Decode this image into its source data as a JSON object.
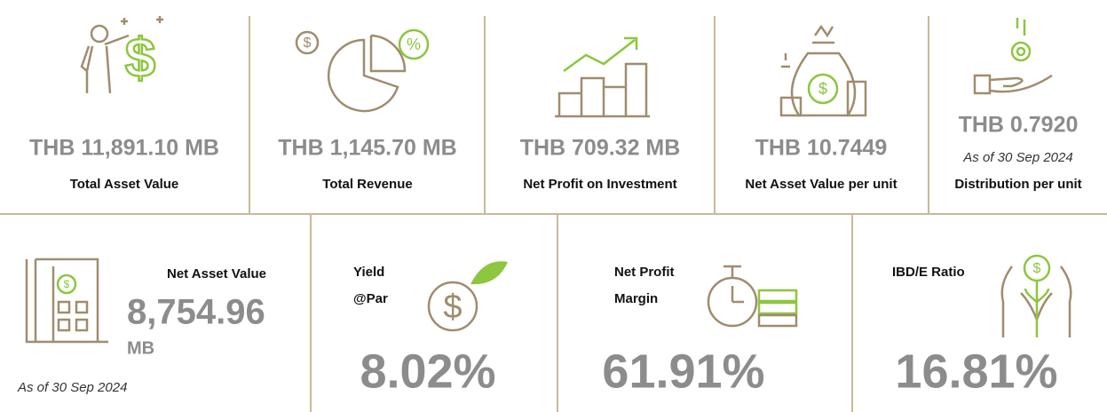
{
  "top_metrics": [
    {
      "value": "THB 11,891.10 MB",
      "label": "Total Asset Value"
    },
    {
      "value": "THB 1,145.70 MB",
      "label": "Total Revenue"
    },
    {
      "value": "THB 709.32 MB",
      "label": "Net Profit on Investment"
    },
    {
      "value": "THB 10.7449",
      "label": "Net Asset Value per unit"
    },
    {
      "value": "THB 0.7920",
      "note": "As of 30 Sep 2024",
      "label": "Distribution per unit"
    }
  ],
  "bottom_metrics": [
    {
      "label": [
        "Net Asset Value"
      ],
      "value": "8,754.96",
      "unit": "MB",
      "note": "As of 30 Sep 2024"
    },
    {
      "label": [
        "Yield",
        "@Par"
      ],
      "value": "8.02%"
    },
    {
      "label": [
        "Net Profit",
        "Margin"
      ],
      "value": "61.91%"
    },
    {
      "label": [
        "IBD/E Ratio"
      ],
      "value": "16.81%"
    }
  ]
}
